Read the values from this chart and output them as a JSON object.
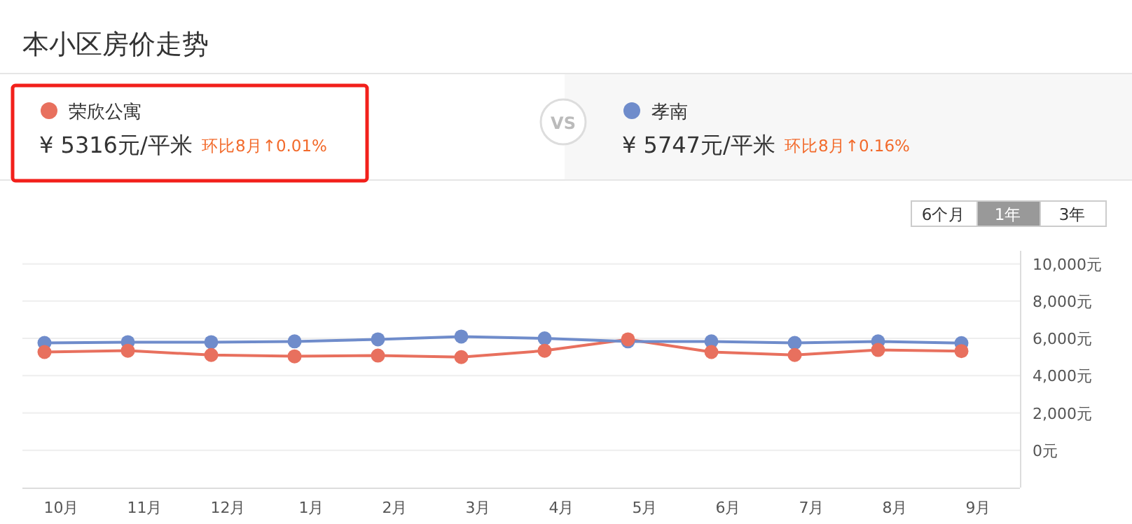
{
  "chart_data": {
    "type": "line",
    "title": "本小区房价走势",
    "categories": [
      "10月",
      "11月",
      "12月",
      "1月",
      "2月",
      "3月",
      "4月",
      "5月",
      "6月",
      "7月",
      "8月",
      "9月"
    ],
    "series": [
      {
        "name": "荣欣公寓",
        "color": "#e8705e",
        "values": [
          5270,
          5340,
          5110,
          5040,
          5080,
          5000,
          5340,
          5950,
          5270,
          5110,
          5380,
          5320
        ]
      },
      {
        "name": "孝南",
        "color": "#6f8ccb",
        "values": [
          5760,
          5800,
          5800,
          5840,
          5950,
          6100,
          6000,
          5840,
          5840,
          5760,
          5840,
          5750
        ]
      }
    ],
    "ylim": [
      -2000,
      10700
    ],
    "yticks": [
      {
        "value": 0,
        "label": "0元"
      },
      {
        "value": 2000,
        "label": "2,000元"
      },
      {
        "value": 4000,
        "label": "4,000元"
      },
      {
        "value": 6000,
        "label": "6,000元"
      },
      {
        "value": 8000,
        "label": "8,000元"
      },
      {
        "value": 10000,
        "label": "10,000元"
      }
    ],
    "grid": "y",
    "marker": "circle",
    "legend": "top",
    "annotations": [
      "¥  5316元/平米",
      "环比8月↑0.01%",
      "VS",
      "¥  5747元/平米",
      "环比8月↑0.16%",
      "6个月",
      "1年",
      "3年"
    ]
  }
}
